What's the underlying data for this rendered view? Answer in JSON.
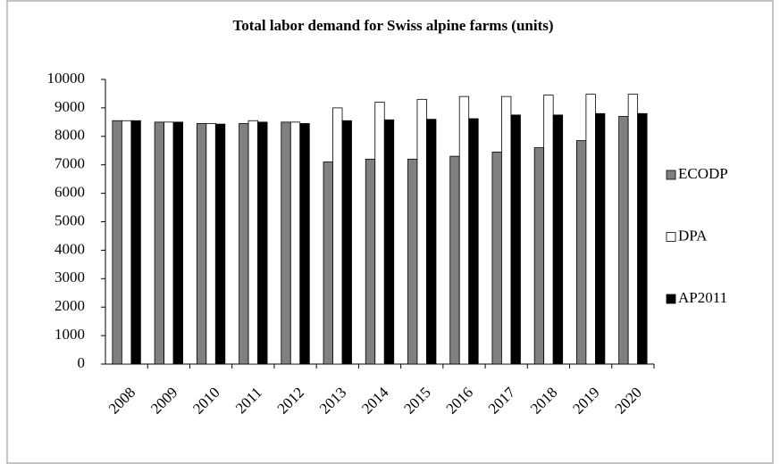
{
  "chart_data": {
    "type": "bar",
    "title": "Total labor demand for Swiss alpine farms (units)",
    "categories": [
      "2008",
      "2009",
      "2010",
      "2011",
      "2012",
      "2013",
      "2014",
      "2015",
      "2016",
      "2017",
      "2018",
      "2019",
      "2020"
    ],
    "series": [
      {
        "name": "ECODP",
        "color": "#808080",
        "values": [
          8550,
          8500,
          8450,
          8450,
          8500,
          7100,
          7200,
          7200,
          7300,
          7450,
          7600,
          7850,
          8700
        ]
      },
      {
        "name": "DPA",
        "color": "#ffffff",
        "values": [
          8550,
          8500,
          8450,
          8550,
          8500,
          9000,
          9200,
          9300,
          9400,
          9400,
          9450,
          9480,
          9480
        ]
      },
      {
        "name": "AP2011",
        "color": "#000000",
        "values": [
          8550,
          8500,
          8430,
          8500,
          8450,
          8550,
          8580,
          8600,
          8620,
          8750,
          8750,
          8800,
          8800
        ]
      }
    ],
    "ylim": [
      0,
      10000
    ],
    "yticks": [
      0,
      1000,
      2000,
      3000,
      4000,
      5000,
      6000,
      7000,
      8000,
      9000,
      10000
    ],
    "grid": false,
    "legend": "right"
  }
}
